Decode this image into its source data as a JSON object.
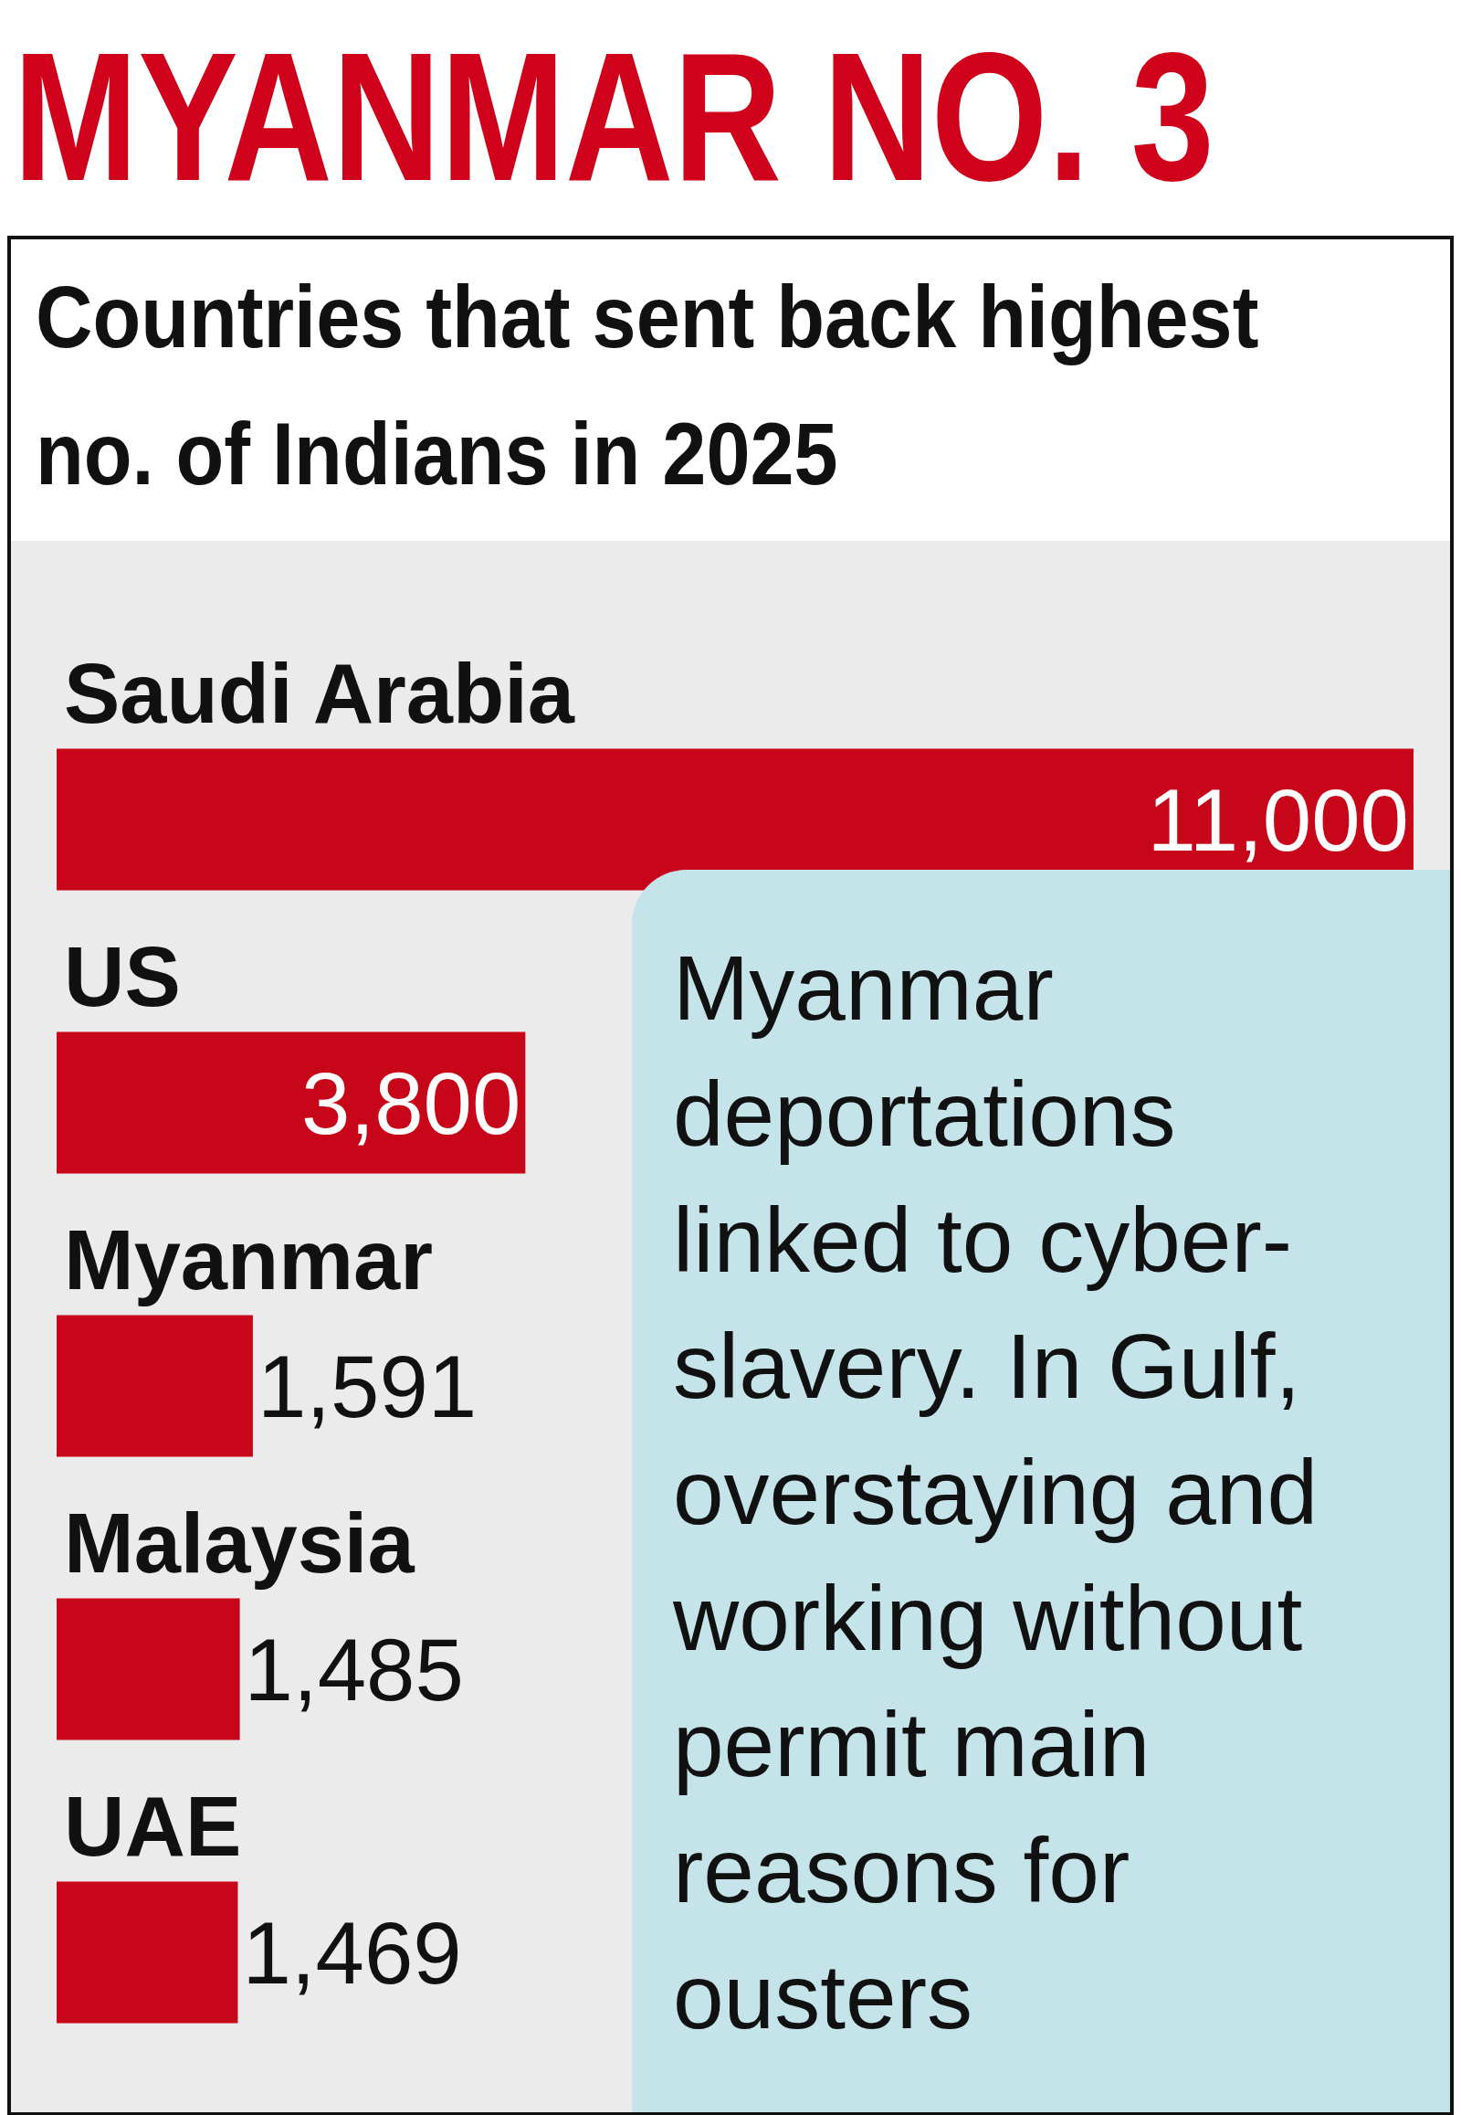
{
  "chart_data": {
    "type": "bar",
    "orientation": "horizontal",
    "title": "MYANMAR NO. 3",
    "subtitle": "Countries that sent back highest no. of Indians in 2025",
    "categories": [
      "Saudi Arabia",
      "US",
      "Myanmar",
      "Malaysia",
      "UAE"
    ],
    "values": [
      11000,
      3800,
      1591,
      1485,
      1469
    ],
    "color": "#c8061a",
    "value_labels": [
      "11,000",
      "3,800",
      "1,591",
      "1,485",
      "1,469"
    ],
    "annotations": [
      "Myanmar deportations linked to cyber-slavery. In Gulf, overstaying and working without permit main reasons for ousters"
    ]
  }
}
